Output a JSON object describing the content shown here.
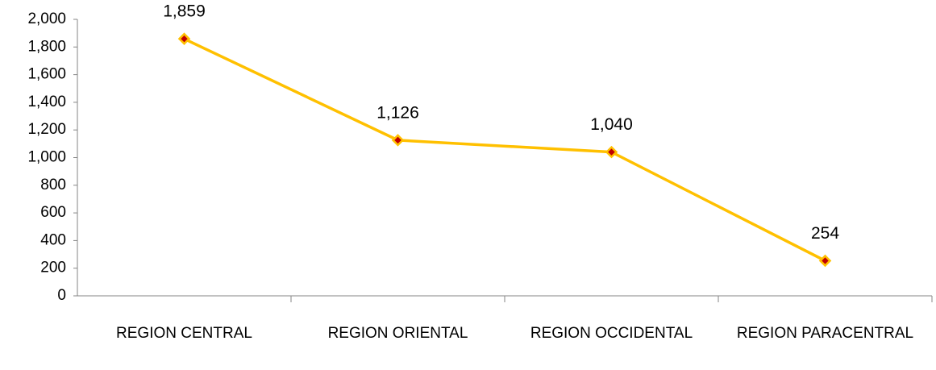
{
  "chart_data": {
    "type": "line",
    "categories": [
      "REGION CENTRAL",
      "REGION ORIENTAL",
      "REGION OCCIDENTAL",
      "REGION PARACENTRAL"
    ],
    "series": [
      {
        "name": null,
        "color": "#FFC000",
        "marker_color": "#C00000",
        "values": [
          1859,
          1126,
          1040,
          254
        ],
        "value_labels": [
          "1,859",
          "1,126",
          "1,040",
          "254"
        ]
      }
    ],
    "ylim": [
      0,
      2000
    ],
    "yticks": [
      0,
      200,
      400,
      600,
      800,
      {
        "value": 1000,
        "label": "1,000"
      },
      {
        "value": 1200,
        "label": "1,200"
      },
      {
        "value": 1400,
        "label": "1,400"
      },
      {
        "value": 1600,
        "label": "1,600"
      },
      {
        "value": 1800,
        "label": "1,800"
      },
      {
        "value": 2000,
        "label": "2,000"
      }
    ],
    "grid": false
  }
}
